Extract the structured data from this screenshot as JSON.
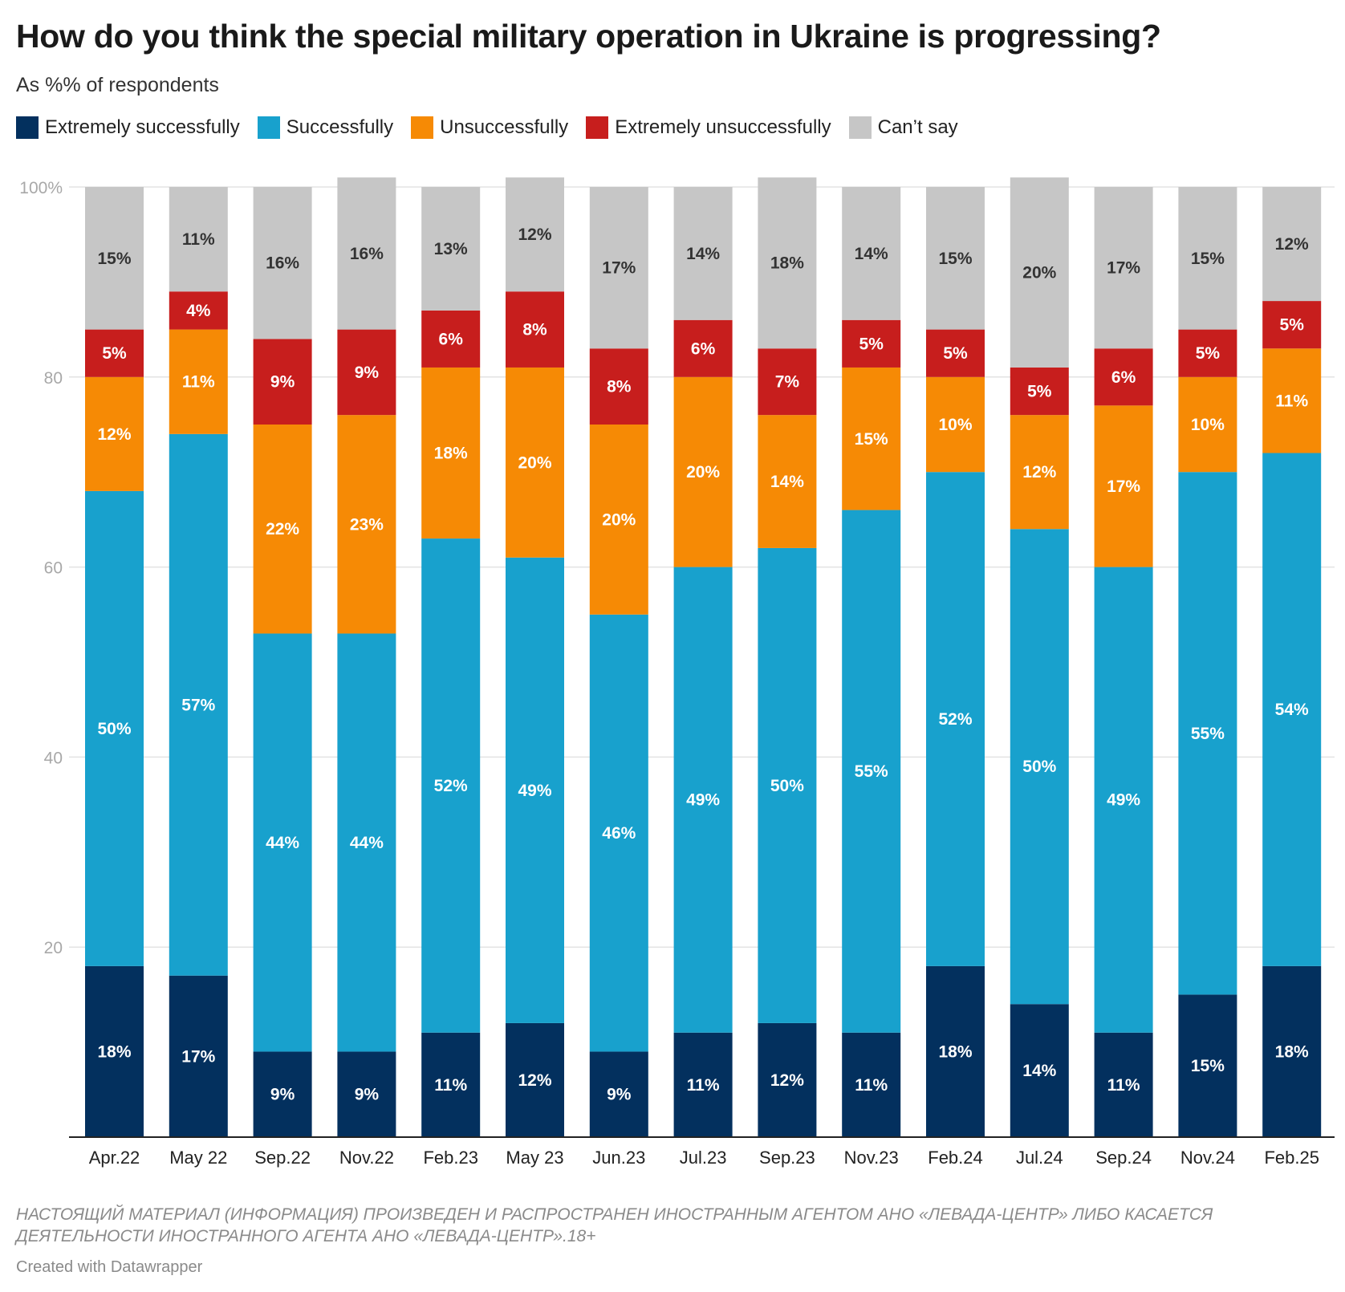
{
  "title": "How do you think the special military operation in Ukraine is progressing?",
  "subtitle": "As %% of respondents",
  "footer_note": "НАСТОЯЩИЙ МАТЕРИАЛ (ИНФОРМАЦИЯ) ПРОИЗВЕДЕН И РАСПРОСТРАНЕН ИНОСТРАННЫМ АГЕНТОМ АНО «ЛЕВАДА-ЦЕНТР» ЛИБО КАСАЕТСЯ ДЕЯТЕЛЬНОСТИ ИНОСТРАННОГО АГЕНТА АНО «ЛЕВАДА-ЦЕНТР».18+",
  "credit": "Created with Datawrapper",
  "chart_data": {
    "type": "bar",
    "stacked": true,
    "categories": [
      "Apr.22",
      "May 22",
      "Sep.22",
      "Nov.22",
      "Feb.23",
      "May 23",
      "Jun.23",
      "Jul.23",
      "Sep.23",
      "Nov.23",
      "Feb.24",
      "Jul.24",
      "Sep.24",
      "Nov.24",
      "Feb.25"
    ],
    "series": [
      {
        "name": "Extremely successfully",
        "color": "#03305e",
        "values": [
          18,
          17,
          9,
          9,
          11,
          12,
          9,
          11,
          12,
          11,
          18,
          14,
          11,
          15,
          18
        ]
      },
      {
        "name": "Successfully",
        "color": "#18a1cd",
        "values": [
          50,
          57,
          44,
          44,
          52,
          49,
          46,
          49,
          50,
          55,
          52,
          50,
          49,
          55,
          54
        ]
      },
      {
        "name": "Unsuccessfully",
        "color": "#f68a05",
        "values": [
          12,
          11,
          22,
          23,
          18,
          20,
          20,
          20,
          14,
          15,
          10,
          12,
          17,
          10,
          11
        ]
      },
      {
        "name": "Extremely unsuccessfully",
        "color": "#c71e1d",
        "values": [
          5,
          4,
          9,
          9,
          6,
          8,
          8,
          6,
          7,
          5,
          5,
          5,
          6,
          5,
          5
        ]
      },
      {
        "name": "Can’t say",
        "color": "#c6c6c6",
        "values": [
          15,
          11,
          16,
          16,
          13,
          12,
          17,
          14,
          18,
          14,
          15,
          20,
          17,
          15,
          12
        ]
      }
    ],
    "ylim": [
      0,
      100
    ],
    "yticks": [
      "20",
      "40",
      "60",
      "80",
      "100%"
    ],
    "ytick_values": [
      20,
      40,
      60,
      80,
      100
    ],
    "xlabel": "",
    "ylabel": "",
    "grid": true,
    "legend_position": "top-left"
  }
}
